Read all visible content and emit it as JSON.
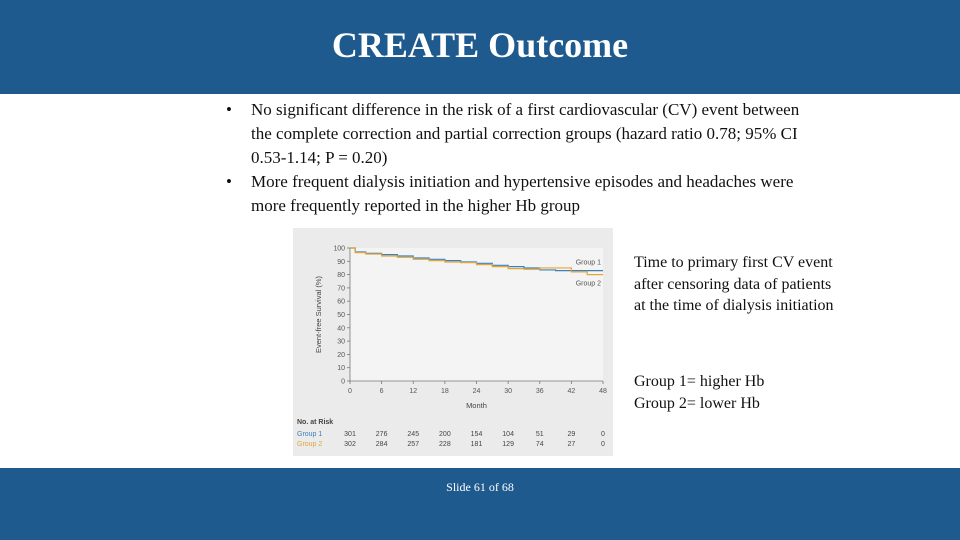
{
  "title": "CREATE Outcome",
  "bullets": [
    "No significant difference in the risk of a first cardiovascular (CV) event between the complete correction and partial correction groups (hazard ratio 0.78; 95% CI 0.53-1.14; P = 0.20)",
    "More frequent dialysis initiation and hypertensive episodes and headaches were more frequently reported in the higher Hb group"
  ],
  "bullet_symbol": "•",
  "caption": "Time to primary first CV event after censoring data of patients at the time of dialysis initiation",
  "legend_lines": [
    "Group 1= higher Hb",
    "Group 2= lower Hb"
  ],
  "footer": "Slide 61 of 68",
  "colors": {
    "bar": "#1f5a8f",
    "group1": "#3f7fb8",
    "group2": "#e0a63a",
    "axis_text": "#555555"
  },
  "chart_data": {
    "type": "line",
    "subtype": "kaplan-meier step",
    "xlabel": "Month",
    "ylabel": "Event-free Survival (%)",
    "xlim": [
      0,
      48
    ],
    "ylim": [
      0,
      100
    ],
    "x_ticks": [
      0,
      6,
      12,
      18,
      24,
      30,
      36,
      42,
      48
    ],
    "y_ticks": [
      0,
      10,
      20,
      30,
      40,
      50,
      60,
      70,
      80,
      90,
      100
    ],
    "legend": "right",
    "series": [
      {
        "name": "Group 1",
        "color_key": "group1",
        "points": [
          [
            0,
            100
          ],
          [
            1,
            97
          ],
          [
            3,
            96
          ],
          [
            6,
            95
          ],
          [
            9,
            94
          ],
          [
            12,
            92.5
          ],
          [
            15,
            91.5
          ],
          [
            18,
            90.5
          ],
          [
            21,
            89.5
          ],
          [
            24,
            88.5
          ],
          [
            27,
            87
          ],
          [
            30,
            86
          ],
          [
            33,
            85
          ],
          [
            36,
            83.5
          ],
          [
            39,
            83
          ],
          [
            42,
            83
          ],
          [
            48,
            83
          ]
        ]
      },
      {
        "name": "Group 2",
        "color_key": "group2",
        "points": [
          [
            0,
            100
          ],
          [
            1,
            96.5
          ],
          [
            3,
            95.5
          ],
          [
            6,
            94
          ],
          [
            9,
            93
          ],
          [
            12,
            91.5
          ],
          [
            15,
            90.5
          ],
          [
            18,
            89.5
          ],
          [
            21,
            89
          ],
          [
            24,
            87.5
          ],
          [
            27,
            86
          ],
          [
            30,
            84.5
          ],
          [
            33,
            84
          ],
          [
            36,
            85
          ],
          [
            39,
            85
          ],
          [
            42,
            82
          ],
          [
            45,
            80
          ],
          [
            48,
            80
          ]
        ]
      }
    ],
    "at_risk": {
      "header": "No. at Risk",
      "rows": [
        {
          "label": "Group 1",
          "values": [
            "301",
            "276",
            "245",
            "200",
            "154",
            "104",
            "51",
            "29",
            "0"
          ]
        },
        {
          "label": "Group 2",
          "values": [
            "302",
            "284",
            "257",
            "228",
            "181",
            "129",
            "74",
            "27",
            "0"
          ]
        }
      ]
    }
  }
}
